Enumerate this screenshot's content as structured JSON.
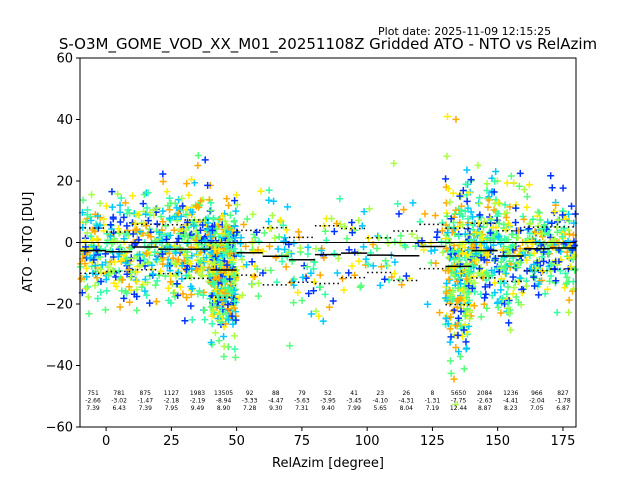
{
  "chart_data": {
    "type": "scatter",
    "title": "S-O3M_GOME_VOD_XX_M01_20251108Z Gridded ATO - NTO vs RelAzim",
    "plot_date": "Plot date: 2025-11-09 12:15:25",
    "xlabel": "RelAzim [degree]",
    "ylabel": "ATO - NTO [DU]",
    "xlim": [
      -10,
      180
    ],
    "ylim": [
      -60,
      60
    ],
    "xticks": [
      0,
      25,
      50,
      75,
      100,
      125,
      150,
      175
    ],
    "yticks": [
      -60,
      -40,
      -20,
      0,
      20,
      40,
      60
    ],
    "xtick_labels": [
      "0",
      "25",
      "50",
      "75",
      "100",
      "125",
      "150",
      "175"
    ],
    "ytick_labels": [
      "−60",
      "−40",
      "−20",
      "0",
      "20",
      "40",
      "60"
    ],
    "grid": false,
    "zero_line": 0,
    "bins": [
      {
        "x0": -10,
        "x1": 0,
        "count": "751",
        "mean": "-2.66",
        "std": "7.39"
      },
      {
        "x0": 0,
        "x1": 10,
        "count": "781",
        "mean": "-3.02",
        "std": "6.43"
      },
      {
        "x0": 10,
        "x1": 20,
        "count": "875",
        "mean": "-1.47",
        "std": "7.39"
      },
      {
        "x0": 20,
        "x1": 30,
        "count": "1127",
        "mean": "-2.18",
        "std": "7.95"
      },
      {
        "x0": 30,
        "x1": 40,
        "count": "1983",
        "mean": "-2.19",
        "std": "9.49"
      },
      {
        "x0": 40,
        "x1": 50,
        "count": "13505",
        "mean": "-8.94",
        "std": "8.90"
      },
      {
        "x0": 50,
        "x1": 60,
        "count": "92",
        "mean": "-3.33",
        "std": "7.28"
      },
      {
        "x0": 60,
        "x1": 70,
        "count": "88",
        "mean": "-4.47",
        "std": "9.30"
      },
      {
        "x0": 70,
        "x1": 80,
        "count": "79",
        "mean": "-5.63",
        "std": "7.31"
      },
      {
        "x0": 80,
        "x1": 90,
        "count": "52",
        "mean": "-3.95",
        "std": "9.40"
      },
      {
        "x0": 90,
        "x1": 100,
        "count": "41",
        "mean": "-3.45",
        "std": "7.99"
      },
      {
        "x0": 100,
        "x1": 110,
        "count": "23",
        "mean": "-4.10",
        "std": "5.65"
      },
      {
        "x0": 110,
        "x1": 120,
        "count": "26",
        "mean": "-4.31",
        "std": "8.04"
      },
      {
        "x0": 120,
        "x1": 130,
        "count": "8",
        "mean": "-1.31",
        "std": "7.19"
      },
      {
        "x0": 130,
        "x1": 140,
        "count": "5650",
        "mean": "-7.75",
        "std": "12.44"
      },
      {
        "x0": 140,
        "x1": 150,
        "count": "2084",
        "mean": "-2.63",
        "std": "8.87"
      },
      {
        "x0": 150,
        "x1": 160,
        "count": "1236",
        "mean": "-4.41",
        "std": "8.23"
      },
      {
        "x0": 160,
        "x1": 170,
        "count": "966",
        "mean": "-2.04",
        "std": "7.05"
      },
      {
        "x0": 170,
        "x1": 180,
        "count": "827",
        "mean": "-1.78",
        "std": "6.87"
      }
    ],
    "marker_colors": [
      "#00c8ff",
      "#33ffaa",
      "#55ff77",
      "#aaff44",
      "#ffee00",
      "#0033ff",
      "#ffaa00"
    ]
  }
}
